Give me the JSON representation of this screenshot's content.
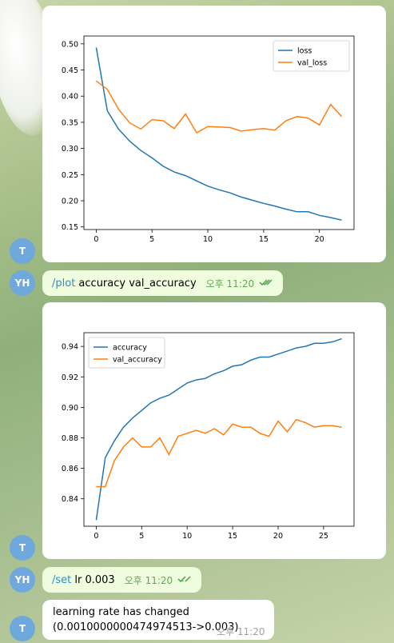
{
  "avatars": {
    "bot": "T",
    "user": "YH"
  },
  "messages": {
    "plot_command": {
      "command": "/plot",
      "args": " accuracy val_accuracy",
      "time": "오후 11:20"
    },
    "set_command": {
      "command": "/set",
      "args": " lr 0.003",
      "time": "오후 11:20"
    },
    "bot_reply": {
      "line1": "learning rate has changed",
      "line2": "(0.0010000000474974513->0.003)",
      "time": "오후 11:20"
    }
  },
  "colors": {
    "series_blue": "#1f77b4",
    "series_orange": "#ff7f0e",
    "out_bubble": "#effdde",
    "check": "#5fa953"
  },
  "icons": {
    "read_receipt": "double-check-icon"
  },
  "chart_data": [
    {
      "type": "line",
      "title": "",
      "xlabel": "",
      "ylabel": "",
      "xlim": [
        -1.1,
        23.1
      ],
      "ylim": [
        0.145,
        0.515
      ],
      "xticks": [
        0,
        5,
        10,
        15,
        20
      ],
      "yticks": [
        0.15,
        0.2,
        0.25,
        0.3,
        0.35,
        0.4,
        0.45,
        0.5
      ],
      "legend": "top-right",
      "series": [
        {
          "name": "loss",
          "color": "#1f77b4",
          "x": [
            0,
            1,
            2,
            3,
            4,
            5,
            6,
            7,
            8,
            9,
            10,
            11,
            12,
            13,
            14,
            15,
            16,
            17,
            18,
            19,
            20,
            21,
            22
          ],
          "values": [
            0.493,
            0.372,
            0.337,
            0.314,
            0.296,
            0.282,
            0.266,
            0.255,
            0.248,
            0.238,
            0.228,
            0.221,
            0.215,
            0.207,
            0.201,
            0.195,
            0.19,
            0.184,
            0.179,
            0.179,
            0.172,
            0.168,
            0.163
          ]
        },
        {
          "name": "val_loss",
          "color": "#ff7f0e",
          "x": [
            0,
            1,
            2,
            3,
            4,
            5,
            6,
            7,
            8,
            9,
            10,
            11,
            12,
            13,
            14,
            15,
            16,
            17,
            18,
            19,
            20,
            21,
            22
          ],
          "values": [
            0.429,
            0.413,
            0.375,
            0.349,
            0.337,
            0.355,
            0.353,
            0.338,
            0.366,
            0.33,
            0.342,
            0.341,
            0.34,
            0.333,
            0.336,
            0.338,
            0.335,
            0.353,
            0.361,
            0.358,
            0.345,
            0.384,
            0.361
          ]
        }
      ]
    },
    {
      "type": "line",
      "title": "",
      "xlabel": "",
      "ylabel": "",
      "xlim": [
        -1.35,
        28.35
      ],
      "ylim": [
        0.822,
        0.949
      ],
      "xticks": [
        0,
        5,
        10,
        15,
        20,
        25
      ],
      "yticks": [
        0.84,
        0.86,
        0.88,
        0.9,
        0.92,
        0.94
      ],
      "legend": "top-left",
      "series": [
        {
          "name": "accuracy",
          "color": "#1f77b4",
          "x": [
            0,
            1,
            2,
            3,
            4,
            5,
            6,
            7,
            8,
            9,
            10,
            11,
            12,
            13,
            14,
            15,
            16,
            17,
            18,
            19,
            20,
            21,
            22,
            23,
            24,
            25,
            26,
            27
          ],
          "values": [
            0.826,
            0.867,
            0.878,
            0.887,
            0.893,
            0.898,
            0.903,
            0.906,
            0.908,
            0.912,
            0.916,
            0.918,
            0.919,
            0.922,
            0.924,
            0.927,
            0.928,
            0.931,
            0.933,
            0.933,
            0.935,
            0.937,
            0.939,
            0.94,
            0.942,
            0.942,
            0.943,
            0.945
          ]
        },
        {
          "name": "val_accuracy",
          "color": "#ff7f0e",
          "x": [
            0,
            1,
            2,
            3,
            4,
            5,
            6,
            7,
            8,
            9,
            10,
            11,
            12,
            13,
            14,
            15,
            16,
            17,
            18,
            19,
            20,
            21,
            22,
            23,
            24,
            25,
            26,
            27
          ],
          "values": [
            0.848,
            0.848,
            0.865,
            0.874,
            0.88,
            0.874,
            0.874,
            0.88,
            0.869,
            0.881,
            0.883,
            0.885,
            0.883,
            0.886,
            0.882,
            0.889,
            0.887,
            0.887,
            0.883,
            0.881,
            0.891,
            0.884,
            0.892,
            0.89,
            0.887,
            0.888,
            0.888,
            0.887
          ]
        }
      ]
    }
  ]
}
